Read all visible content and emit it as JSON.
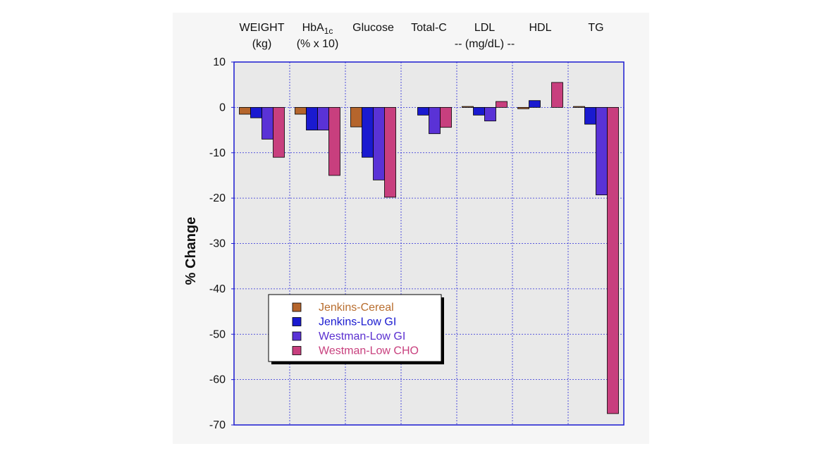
{
  "chart_data": {
    "type": "bar",
    "title": "",
    "xlabel": "",
    "ylabel": "% Change",
    "ylim": [
      -70,
      10
    ],
    "yticks": [
      10,
      0,
      -10,
      -20,
      -30,
      -40,
      -50,
      -60,
      -70
    ],
    "grid": true,
    "legend_position": "lower-left",
    "categories": [
      "WEIGHT",
      "HbA1c",
      "Glucose",
      "Total-C",
      "LDL",
      "HDL",
      "TG"
    ],
    "category_labels": [
      {
        "line1": "WEIGHT",
        "line2": "(kg)"
      },
      {
        "line1": "HbA",
        "sub": "1c",
        "line2": "(% x 10)"
      },
      {
        "line1": "Glucose",
        "line2": ""
      },
      {
        "line1": "Total-C",
        "line2": ""
      },
      {
        "line1": "LDL",
        "line2": "-- (mg/dL) --"
      },
      {
        "line1": "HDL",
        "line2": ""
      },
      {
        "line1": "TG",
        "line2": ""
      }
    ],
    "series": [
      {
        "name": "Jenkins-Cereal",
        "color": "#b5652c",
        "text_color": "#b86d2e",
        "values": [
          -1.5,
          -1.5,
          -4.3,
          0,
          0.2,
          -0.3,
          0.2
        ]
      },
      {
        "name": "Jenkins-Low GI",
        "color": "#1a1ad0",
        "text_color": "#1a1ad0",
        "values": [
          -2.3,
          -5,
          -11,
          -1.7,
          -1.7,
          1.5,
          -3.7
        ]
      },
      {
        "name": "Westman-Low GI",
        "color": "#5a32d6",
        "text_color": "#5a2fd0",
        "values": [
          -7,
          -5,
          -16,
          -5.8,
          -3,
          0,
          -19.3
        ]
      },
      {
        "name": "Westman-Low CHO",
        "color": "#c83f7e",
        "text_color": "#c8407e",
        "values": [
          -11,
          -15,
          -19.8,
          -4.4,
          1.3,
          5.5,
          -67.5
        ]
      }
    ]
  }
}
